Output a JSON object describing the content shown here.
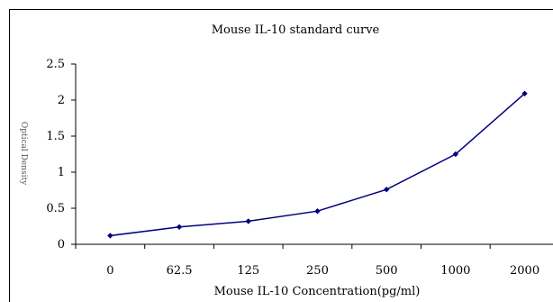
{
  "chart_data": {
    "type": "line",
    "title": "Mouse IL-10 standard curve",
    "xlabel": "Mouse IL-10 Concentration(pg/ml)",
    "ylabel": "Optical Density",
    "categories": [
      "0",
      "62.5",
      "125",
      "250",
      "500",
      "1000",
      "2000"
    ],
    "series": [
      {
        "values": [
          0.12,
          0.24,
          0.32,
          0.46,
          0.76,
          1.25,
          2.09
        ]
      }
    ],
    "ylim": [
      0,
      2.5
    ],
    "yticks": [
      "0",
      "0.5",
      "1",
      "1.5",
      "2",
      "2.5"
    ],
    "grid": false,
    "legend": "none",
    "colors": {
      "line": "#000080",
      "axis": "#000000"
    }
  }
}
